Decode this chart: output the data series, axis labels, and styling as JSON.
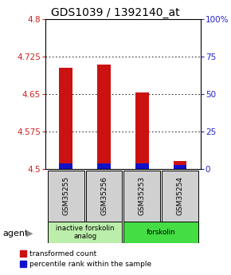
{
  "title": "GDS1039 / 1392140_at",
  "categories": [
    "GSM35255",
    "GSM35256",
    "GSM35253",
    "GSM35254"
  ],
  "red_values": [
    4.703,
    4.71,
    4.653,
    4.516
  ],
  "blue_values": [
    4.511,
    4.511,
    4.511,
    4.509
  ],
  "ymin": 4.5,
  "ymax": 4.8,
  "yticks": [
    4.5,
    4.575,
    4.65,
    4.725,
    4.8
  ],
  "ytick_labels": [
    "4.5",
    "4.575",
    "4.65",
    "4.725",
    "4.8"
  ],
  "y2min": 0,
  "y2max": 100,
  "y2ticks": [
    0,
    25,
    50,
    75,
    100
  ],
  "y2tick_labels": [
    "0",
    "25",
    "50",
    "75",
    "100%"
  ],
  "bar_width": 0.35,
  "red_color": "#cc1111",
  "blue_color": "#1111cc",
  "group_info": [
    {
      "span": [
        0,
        2
      ],
      "label": "inactive forskolin\nanalog",
      "color": "#bbeeaa"
    },
    {
      "span": [
        2,
        4
      ],
      "label": "forskolin",
      "color": "#44dd44"
    }
  ],
  "agent_label": "agent",
  "legend_items": [
    "transformed count",
    "percentile rank within the sample"
  ],
  "legend_colors": [
    "#cc1111",
    "#1111cc"
  ],
  "title_fontsize": 10,
  "tick_fontsize": 7.5,
  "axis_color_left": "#cc2222",
  "axis_color_right": "#2222cc",
  "bg_color": "#ffffff"
}
